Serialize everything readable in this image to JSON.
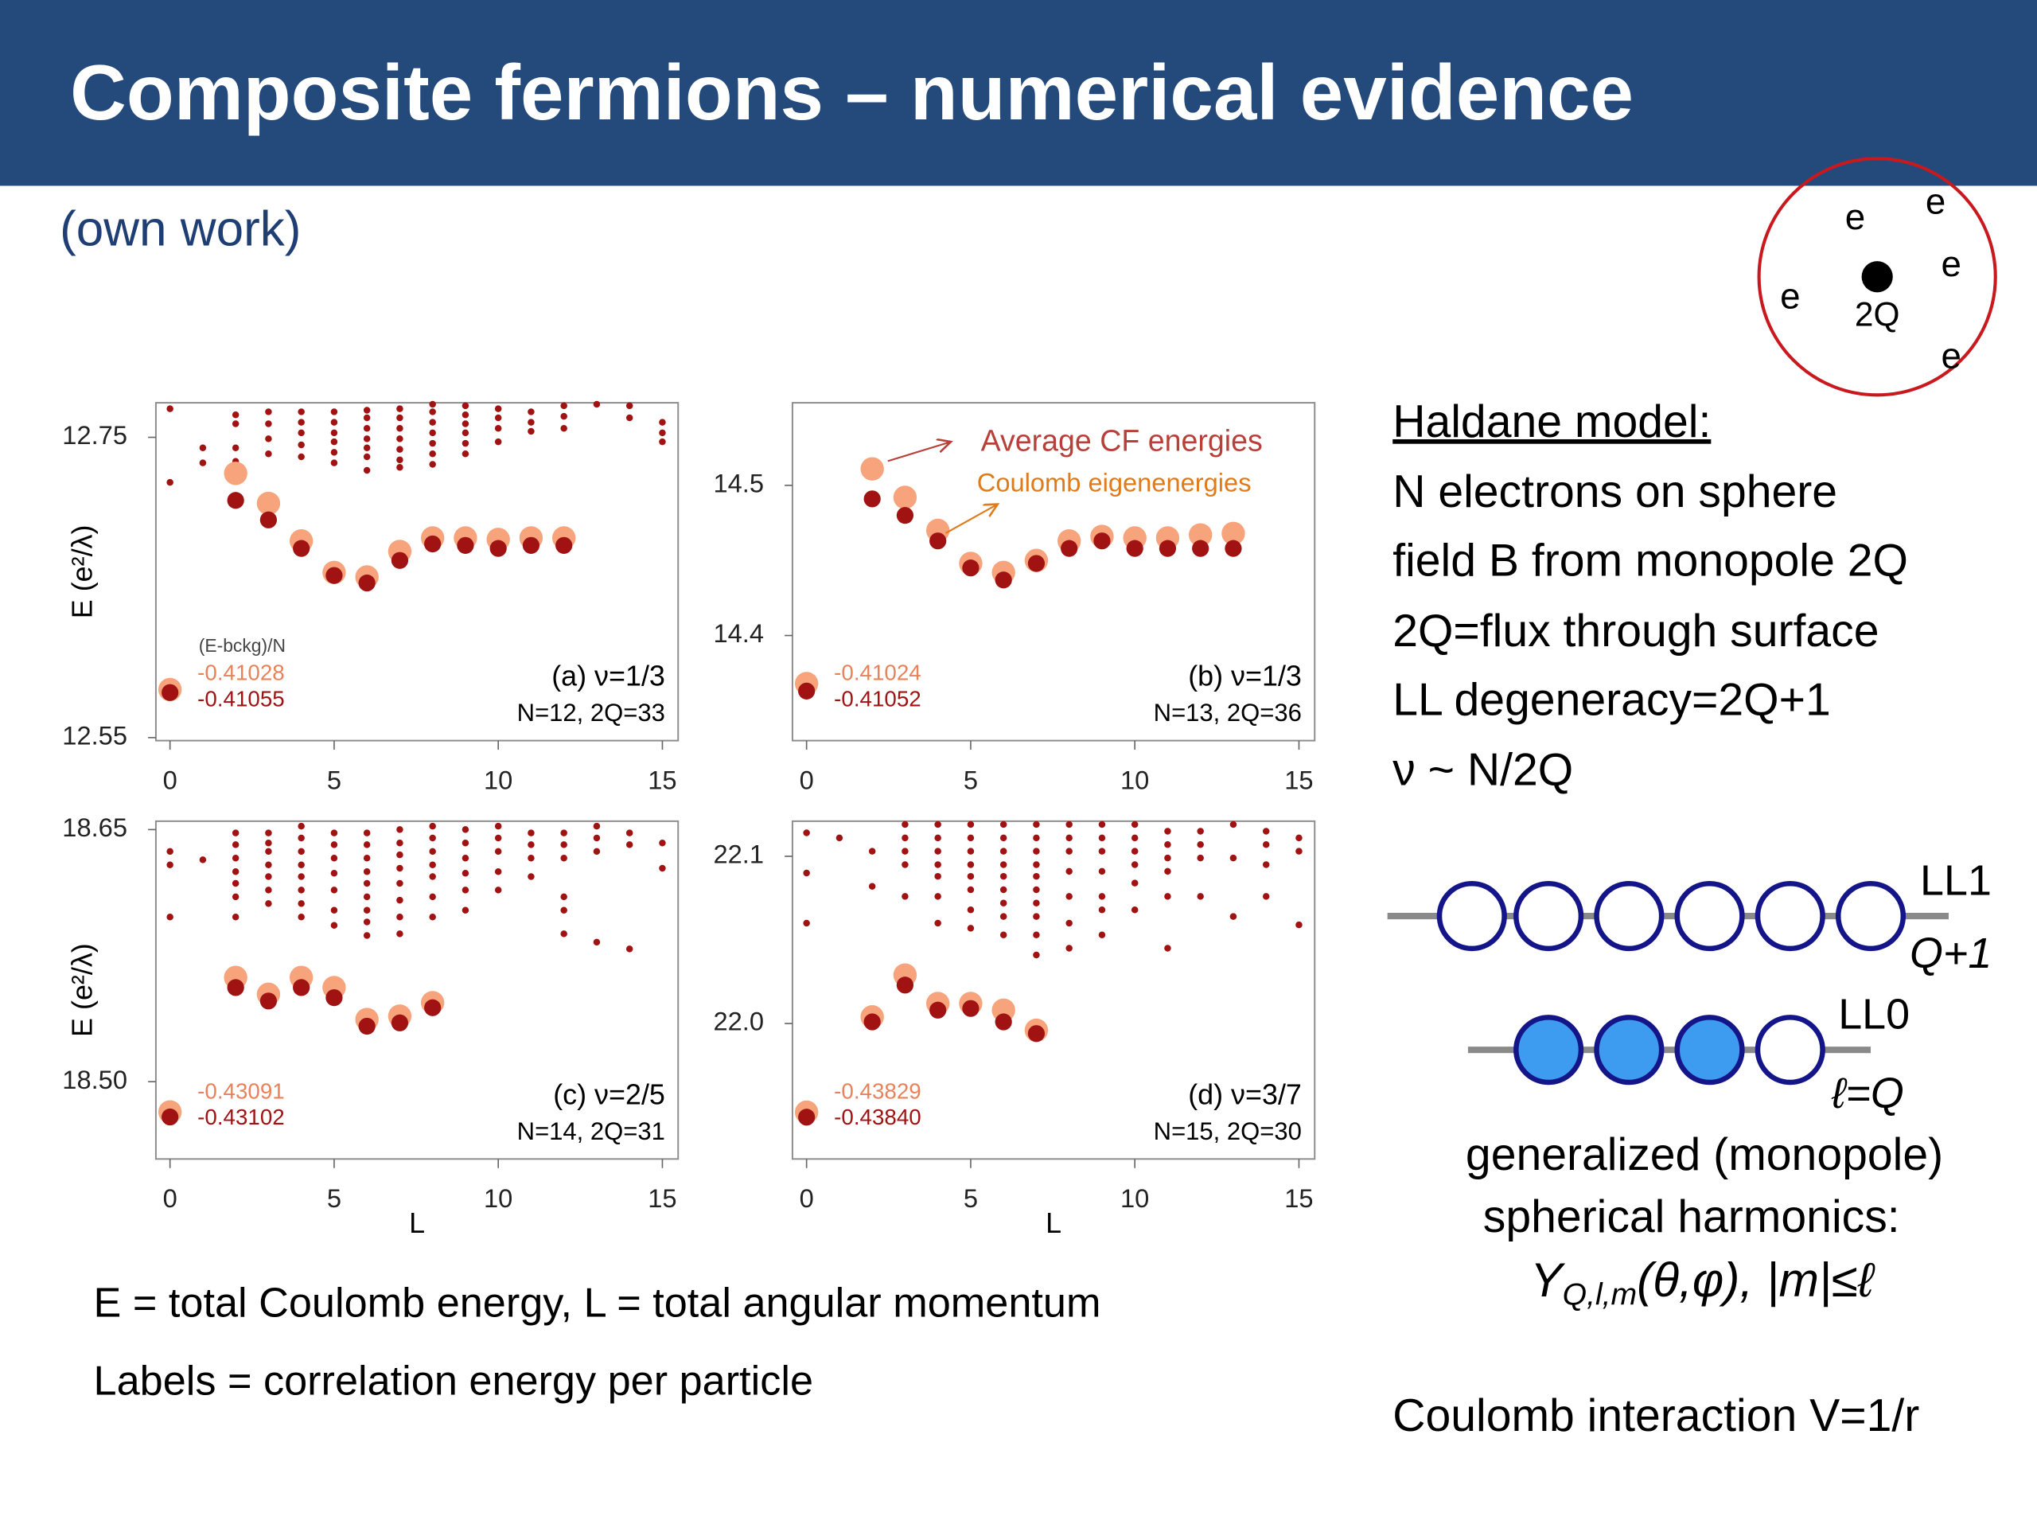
{
  "header": {
    "title": "Composite fermions – numerical evidence",
    "subtitle": "(own work)"
  },
  "chart_data": [
    {
      "type": "scatter",
      "ylabel": "E (e²/λ)",
      "xlim": [
        -0.43,
        15.48
      ],
      "xticks": [
        0,
        5,
        10,
        15
      ],
      "ylim": [
        12.548,
        12.773
      ],
      "yticks": [
        12.55,
        12.75
      ],
      "label_header": "(E-bckg)/N",
      "energy_labels": [
        "-0.41028",
        "-0.41055"
      ],
      "panel_label": "(a) ν=1/3",
      "params": "N=12, 2Q=33",
      "series": [
        {
          "color": "#f7a47c",
          "x": [
            0,
            2,
            3,
            4,
            5,
            6,
            7,
            8,
            9,
            10,
            11,
            12
          ],
          "values": [
            12.582,
            12.726,
            12.706,
            12.681,
            12.66,
            12.657,
            12.674,
            12.683,
            12.683,
            12.682,
            12.683,
            12.683
          ]
        },
        {
          "color": "#a11313",
          "x": [
            0,
            2,
            3,
            4,
            5,
            6,
            7,
            8,
            9,
            10,
            11,
            12
          ],
          "values": [
            12.58,
            12.708,
            12.695,
            12.676,
            12.658,
            12.653,
            12.668,
            12.679,
            12.678,
            12.676,
            12.678,
            12.678
          ]
        },
        {
          "color": "#a11313",
          "x": [
            0,
            0,
            1,
            1,
            2,
            2,
            2,
            2,
            3,
            3,
            3,
            3,
            4,
            4,
            4,
            4,
            4,
            5,
            5,
            5,
            5,
            5,
            5,
            6,
            6,
            6,
            6,
            6,
            6,
            6,
            7,
            7,
            7,
            7,
            7,
            7,
            7,
            8,
            8,
            8,
            8,
            8,
            8,
            8,
            9,
            9,
            9,
            9,
            9,
            9,
            10,
            10,
            10,
            10,
            11,
            11,
            11,
            12,
            12,
            12,
            13,
            14,
            14,
            15,
            15,
            15
          ],
          "values": [
            12.769,
            12.72,
            12.743,
            12.733,
            12.765,
            12.759,
            12.743,
            12.734,
            12.767,
            12.759,
            12.749,
            12.739,
            12.767,
            12.76,
            12.753,
            12.745,
            12.737,
            12.767,
            12.76,
            12.753,
            12.747,
            12.74,
            12.733,
            12.768,
            12.763,
            12.756,
            12.749,
            12.743,
            12.737,
            12.728,
            12.769,
            12.763,
            12.756,
            12.749,
            12.742,
            12.735,
            12.73,
            12.772,
            12.767,
            12.76,
            12.753,
            12.746,
            12.739,
            12.732,
            12.771,
            12.765,
            12.759,
            12.753,
            12.746,
            12.739,
            12.769,
            12.763,
            12.756,
            12.747,
            12.767,
            12.76,
            12.754,
            12.771,
            12.764,
            12.756,
            12.772,
            12.771,
            12.763,
            12.76,
            12.753,
            12.747
          ]
        }
      ]
    },
    {
      "type": "scatter",
      "xlim": [
        -0.43,
        15.48
      ],
      "xticks": [
        0,
        5,
        10,
        15
      ],
      "ylim": [
        14.33,
        14.555
      ],
      "yticks": [
        14.4,
        14.5
      ],
      "energy_labels": [
        "-0.41024",
        "-0.41052"
      ],
      "panel_label": "(b) ν=1/3",
      "params": "N=13, 2Q=36",
      "series": [
        {
          "name": "Average CF energies",
          "color": "#f7a47c",
          "x": [
            0,
            2,
            3,
            4,
            5,
            6,
            7,
            8,
            9,
            10,
            11,
            12,
            13
          ],
          "values": [
            14.368,
            14.511,
            14.492,
            14.47,
            14.448,
            14.442,
            14.45,
            14.463,
            14.466,
            14.465,
            14.465,
            14.467,
            14.468
          ]
        },
        {
          "name": "Coulomb eigenenergies",
          "color": "#a11313",
          "x": [
            0,
            2,
            3,
            4,
            5,
            6,
            7,
            8,
            9,
            10,
            11,
            12,
            13
          ],
          "values": [
            14.363,
            14.491,
            14.48,
            14.463,
            14.445,
            14.437,
            14.448,
            14.458,
            14.463,
            14.458,
            14.458,
            14.458,
            14.458
          ]
        }
      ]
    },
    {
      "type": "scatter",
      "ylabel": "E (e²/λ)",
      "xlabel": "L",
      "xlim": [
        -0.43,
        15.48
      ],
      "xticks": [
        0,
        5,
        10,
        15
      ],
      "ylim": [
        18.454,
        18.655
      ],
      "yticks": [
        {
          "value": 18.5,
          "label": "18.50"
        },
        18.65
      ],
      "energy_labels": [
        "-0.43091",
        "-0.43102"
      ],
      "panel_label": "(c) ν=2/5",
      "params": "N=14, 2Q=31",
      "series": [
        {
          "color": "#f7a47c",
          "x": [
            0,
            2,
            3,
            4,
            5,
            6,
            7,
            8
          ],
          "values": [
            18.482,
            18.562,
            18.552,
            18.562,
            18.556,
            18.537,
            18.539,
            18.547
          ]
        },
        {
          "color": "#a11313",
          "x": [
            0,
            2,
            3,
            4,
            5,
            6,
            7,
            8
          ],
          "values": [
            18.479,
            18.556,
            18.548,
            18.556,
            18.55,
            18.533,
            18.535,
            18.544
          ]
        },
        {
          "color": "#a11313",
          "x": [
            0,
            0,
            0,
            1,
            2,
            2,
            2,
            2,
            2,
            2,
            2,
            3,
            3,
            3,
            3,
            3,
            3,
            3,
            4,
            4,
            4,
            4,
            4,
            4,
            4,
            4,
            5,
            5,
            5,
            5,
            5,
            5,
            5,
            6,
            6,
            6,
            6,
            6,
            6,
            6,
            6,
            6,
            7,
            7,
            7,
            7,
            7,
            7,
            7,
            7,
            8,
            8,
            8,
            8,
            8,
            8,
            8,
            9,
            9,
            9,
            9,
            9,
            9,
            10,
            10,
            10,
            10,
            10,
            11,
            11,
            11,
            11,
            12,
            12,
            12,
            12,
            12,
            12,
            13,
            13,
            13,
            13,
            14,
            14,
            14,
            15,
            15
          ],
          "values": [
            18.637,
            18.629,
            18.598,
            18.632,
            18.648,
            18.641,
            18.633,
            18.625,
            18.618,
            18.61,
            18.598,
            18.648,
            18.642,
            18.637,
            18.629,
            18.622,
            18.614,
            18.606,
            18.652,
            18.645,
            18.637,
            18.629,
            18.622,
            18.614,
            18.606,
            18.598,
            18.648,
            18.641,
            18.633,
            18.624,
            18.614,
            18.602,
            18.593,
            18.648,
            18.641,
            18.633,
            18.625,
            18.618,
            18.61,
            18.602,
            18.595,
            18.587,
            18.65,
            18.642,
            18.635,
            18.627,
            18.618,
            18.608,
            18.598,
            18.588,
            18.652,
            18.645,
            18.637,
            18.629,
            18.622,
            18.61,
            18.598,
            18.65,
            18.642,
            18.633,
            18.624,
            18.614,
            18.602,
            18.652,
            18.645,
            18.637,
            18.625,
            18.614,
            18.648,
            18.641,
            18.633,
            18.622,
            18.648,
            18.641,
            18.633,
            18.61,
            18.602,
            18.588,
            18.652,
            18.645,
            18.637,
            18.583,
            18.648,
            18.641,
            18.579,
            18.642,
            18.627
          ]
        }
      ]
    },
    {
      "type": "scatter",
      "xlabel": "L",
      "xlim": [
        -0.43,
        15.48
      ],
      "xticks": [
        0,
        5,
        10,
        15
      ],
      "ylim": [
        21.919,
        22.121
      ],
      "yticks": [
        {
          "value": 22,
          "label": "22.0"
        },
        22.1
      ],
      "energy_labels": [
        "-0.43829",
        "-0.43840"
      ],
      "panel_label": "(d) ν=3/7",
      "params": "N=15, 2Q=30",
      "series": [
        {
          "color": "#f7a47c",
          "x": [
            0,
            2,
            3,
            4,
            5,
            6,
            7
          ],
          "values": [
            21.947,
            22.004,
            22.029,
            22.012,
            22.012,
            22.008,
            21.996
          ]
        },
        {
          "color": "#a11313",
          "x": [
            0,
            2,
            3,
            4,
            5,
            6,
            7
          ],
          "values": [
            21.944,
            22.001,
            22.023,
            22.008,
            22.009,
            22.001,
            21.994
          ]
        },
        {
          "color": "#a11313",
          "x": [
            0,
            0,
            0,
            1,
            2,
            2,
            3,
            3,
            3,
            3,
            3,
            4,
            4,
            4,
            4,
            4,
            4,
            4,
            5,
            5,
            5,
            5,
            5,
            5,
            5,
            5,
            6,
            6,
            6,
            6,
            6,
            6,
            6,
            6,
            6,
            7,
            7,
            7,
            7,
            7,
            7,
            7,
            7,
            7,
            7,
            8,
            8,
            8,
            8,
            8,
            8,
            8,
            9,
            9,
            9,
            9,
            9,
            9,
            9,
            10,
            10,
            10,
            10,
            10,
            10,
            11,
            11,
            11,
            11,
            11,
            11,
            12,
            12,
            12,
            12,
            13,
            13,
            13,
            14,
            14,
            14,
            14,
            15,
            15,
            15
          ],
          "values": [
            22.114,
            22.09,
            22.06,
            22.111,
            22.103,
            22.082,
            22.119,
            22.111,
            22.103,
            22.095,
            22.076,
            22.119,
            22.111,
            22.103,
            22.095,
            22.088,
            22.076,
            22.06,
            22.119,
            22.111,
            22.103,
            22.095,
            22.088,
            22.08,
            22.068,
            22.057,
            22.119,
            22.111,
            22.103,
            22.095,
            22.088,
            22.08,
            22.072,
            22.064,
            22.053,
            22.119,
            22.111,
            22.103,
            22.095,
            22.088,
            22.08,
            22.072,
            22.064,
            22.053,
            22.041,
            22.119,
            22.111,
            22.103,
            22.091,
            22.076,
            22.06,
            22.045,
            22.119,
            22.111,
            22.103,
            22.091,
            22.076,
            22.068,
            22.053,
            22.119,
            22.111,
            22.103,
            22.095,
            22.084,
            22.068,
            22.115,
            22.107,
            22.099,
            22.091,
            22.076,
            22.045,
            22.115,
            22.107,
            22.099,
            22.076,
            22.119,
            22.099,
            22.064,
            22.115,
            22.107,
            22.095,
            22.076,
            22.111,
            22.103,
            22.059
          ]
        }
      ]
    }
  ],
  "notes": [
    "E = total Coulomb energy, L = total angular momentum",
    "Labels = correlation energy per particle"
  ],
  "sphere": {
    "electrons": [
      "e",
      "e",
      "e",
      "e",
      "e"
    ],
    "monopole": "2Q"
  },
  "haldane": {
    "heading": "Haldane model:",
    "lines": [
      "N electrons on sphere",
      "field B from monopole 2Q",
      "2Q=flux through surface",
      "LL degeneracy=2Q+1",
      "ν ~ N/2Q"
    ]
  },
  "levels": {
    "ll1": "LL1",
    "ll1_count": "Q+1",
    "ll0": "LL0",
    "ll0_count": "ℓ=Q"
  },
  "harmonics": {
    "lines": [
      "generalized (monopole)",
      "spherical harmonics:"
    ],
    "symbol": "Y",
    "subscript": "Q,l,m",
    "rest": "(θ,φ), |m|≤ℓ"
  },
  "interaction": "Coulomb interaction V=1/r"
}
